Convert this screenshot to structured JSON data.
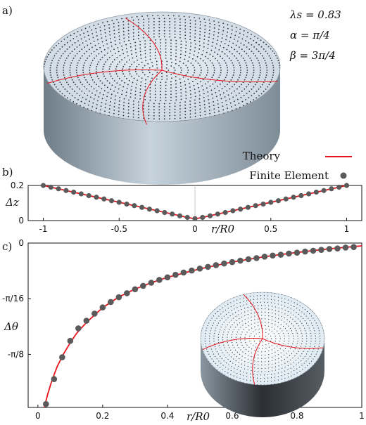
{
  "panel_a": {
    "label": "a)",
    "params": [
      "λs = 0.83",
      "α = π/4",
      "β = 3π/4"
    ]
  },
  "legend": {
    "theory": "Theory",
    "fe": "Finite Element",
    "theory_color": "#e8131b",
    "fe_color": "#5a5a5a"
  },
  "chart_data": [
    {
      "type": "scatter",
      "panel": "b)",
      "xlabel": "r/R0",
      "ylabel": "Δz",
      "xlim": [
        -1.1,
        1.1
      ],
      "ylim": [
        0,
        0.2
      ],
      "xticks": [
        "-1",
        "-0.5",
        "0",
        "0.5",
        "1"
      ],
      "yticks": [
        "0",
        "0.2"
      ],
      "series": [
        {
          "name": "Finite Element",
          "x": [
            -1.0,
            -0.95,
            -0.9,
            -0.85,
            -0.8,
            -0.75,
            -0.7,
            -0.65,
            -0.6,
            -0.55,
            -0.5,
            -0.45,
            -0.4,
            -0.35,
            -0.3,
            -0.25,
            -0.2,
            -0.15,
            -0.1,
            -0.05,
            0.0,
            0.05,
            0.1,
            0.15,
            0.2,
            0.25,
            0.3,
            0.35,
            0.4,
            0.45,
            0.5,
            0.55,
            0.6,
            0.65,
            0.7,
            0.75,
            0.8,
            0.85,
            0.9,
            0.95,
            1.0
          ],
          "y": [
            0.2,
            0.19,
            0.181,
            0.171,
            0.162,
            0.152,
            0.142,
            0.133,
            0.123,
            0.113,
            0.104,
            0.094,
            0.085,
            0.075,
            0.065,
            0.056,
            0.046,
            0.037,
            0.027,
            0.018,
            0.011,
            0.018,
            0.027,
            0.037,
            0.046,
            0.056,
            0.065,
            0.075,
            0.085,
            0.094,
            0.104,
            0.113,
            0.123,
            0.133,
            0.142,
            0.152,
            0.162,
            0.171,
            0.181,
            0.19,
            0.2
          ]
        },
        {
          "name": "Theory",
          "x": [
            -1.0,
            -0.05,
            0.0,
            0.05,
            1.0
          ],
          "y": [
            0.2,
            0.018,
            0.01,
            0.018,
            0.2
          ]
        }
      ]
    },
    {
      "type": "scatter",
      "panel": "c)",
      "xlabel": "r/R0",
      "ylabel": "Δθ",
      "xlim": [
        -0.03,
        1.0
      ],
      "ylim": [
        -0.58,
        0.0
      ],
      "xticks": [
        "0",
        "0.2",
        "0.4",
        "0.6",
        "0.8",
        "1"
      ],
      "yticks": [
        "0",
        "-π/16",
        "-π/8"
      ],
      "ytick_values": [
        0,
        -0.19635,
        -0.3927
      ],
      "series": [
        {
          "name": "Finite Element",
          "x": [
            0.025,
            0.05,
            0.075,
            0.1,
            0.125,
            0.15,
            0.175,
            0.2,
            0.225,
            0.25,
            0.275,
            0.3,
            0.325,
            0.35,
            0.375,
            0.4,
            0.425,
            0.45,
            0.475,
            0.5,
            0.525,
            0.55,
            0.575,
            0.6,
            0.625,
            0.65,
            0.675,
            0.7,
            0.725,
            0.75,
            0.775,
            0.8,
            0.825,
            0.85,
            0.875,
            0.9,
            0.925,
            0.95,
            0.975
          ],
          "y": [
            -0.568,
            -0.48,
            -0.403,
            -0.345,
            -0.301,
            -0.274,
            -0.249,
            -0.227,
            -0.208,
            -0.191,
            -0.177,
            -0.163,
            -0.151,
            -0.14,
            -0.13,
            -0.121,
            -0.112,
            -0.104,
            -0.097,
            -0.09,
            -0.084,
            -0.078,
            -0.072,
            -0.067,
            -0.062,
            -0.057,
            -0.053,
            -0.048,
            -0.044,
            -0.041,
            -0.037,
            -0.034,
            -0.03,
            -0.027,
            -0.024,
            -0.021,
            -0.019,
            -0.016,
            -0.014
          ]
        },
        {
          "name": "Theory",
          "x": [
            0.02,
            0.03,
            0.04,
            0.05,
            0.06,
            0.08,
            0.1,
            0.12,
            0.15,
            0.2,
            0.25,
            0.3,
            0.35,
            0.4,
            0.5,
            0.6,
            0.7,
            0.8,
            0.9,
            1.0
          ],
          "y": [
            -0.58,
            -0.535,
            -0.497,
            -0.465,
            -0.435,
            -0.39,
            -0.352,
            -0.318,
            -0.28,
            -0.228,
            -0.19,
            -0.162,
            -0.14,
            -0.121,
            -0.091,
            -0.067,
            -0.048,
            -0.033,
            -0.02,
            -0.01
          ]
        }
      ]
    }
  ]
}
